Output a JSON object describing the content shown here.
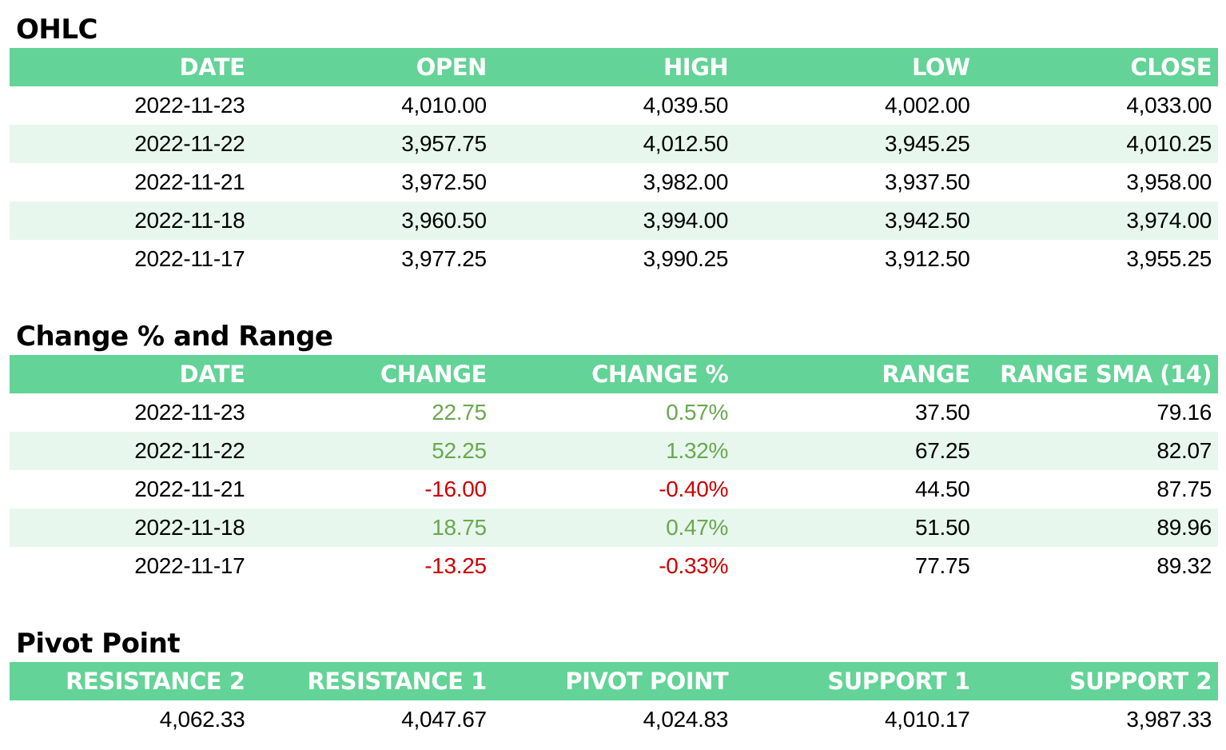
{
  "ohlc": {
    "title": "OHLC",
    "headers": [
      "DATE",
      "OPEN",
      "HIGH",
      "LOW",
      "CLOSE"
    ],
    "rows": [
      [
        "2022-11-23",
        "4,010.00",
        "4,039.50",
        "4,002.00",
        "4,033.00"
      ],
      [
        "2022-11-22",
        "3,957.75",
        "4,012.50",
        "3,945.25",
        "4,010.25"
      ],
      [
        "2022-11-21",
        "3,972.50",
        "3,982.00",
        "3,937.50",
        "3,958.00"
      ],
      [
        "2022-11-18",
        "3,960.50",
        "3,994.00",
        "3,942.50",
        "3,974.00"
      ],
      [
        "2022-11-17",
        "3,977.25",
        "3,990.25",
        "3,912.50",
        "3,955.25"
      ]
    ]
  },
  "change": {
    "title": "Change % and Range",
    "headers": [
      "DATE",
      "CHANGE",
      "CHANGE %",
      "RANGE",
      "RANGE SMA (14)"
    ],
    "rows": [
      [
        "2022-11-23",
        "22.75",
        "0.57%",
        "37.50",
        "79.16"
      ],
      [
        "2022-11-22",
        "52.25",
        "1.32%",
        "67.25",
        "82.07"
      ],
      [
        "2022-11-21",
        "-16.00",
        "-0.40%",
        "44.50",
        "87.75"
      ],
      [
        "2022-11-18",
        "18.75",
        "0.47%",
        "51.50",
        "89.96"
      ],
      [
        "2022-11-17",
        "-13.25",
        "-0.33%",
        "77.75",
        "89.32"
      ]
    ],
    "positive_color": "#6aa84f",
    "negative_color": "#cc0000"
  },
  "pivot": {
    "title": "Pivot Point",
    "headers": [
      "RESISTANCE 2",
      "RESISTANCE 1",
      "PIVOT POINT",
      "SUPPORT 1",
      "SUPPORT 2"
    ],
    "rows": [
      [
        "4,062.33",
        "4,047.67",
        "4,024.83",
        "4,010.17",
        "3,987.33"
      ]
    ]
  },
  "colors": {
    "header_bg": "#63d397",
    "stripe_bg": "#e7f7ed"
  }
}
